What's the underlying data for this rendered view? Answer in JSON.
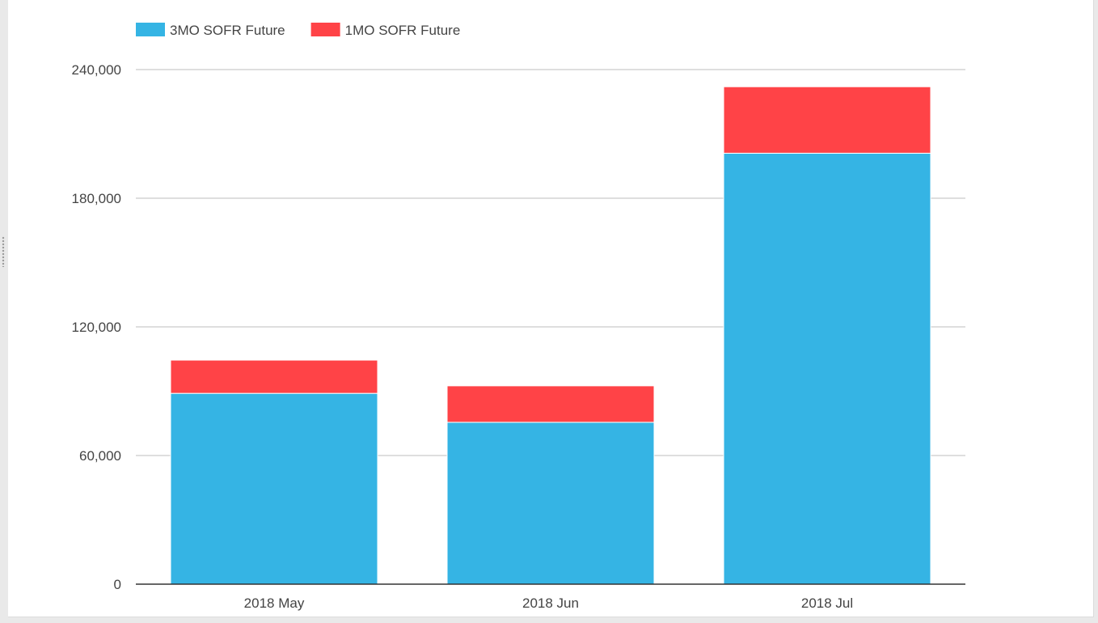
{
  "chart_data": {
    "type": "bar",
    "stacked": true,
    "title": "",
    "xlabel": "",
    "ylabel": "",
    "categories": [
      "2018 May",
      "2018 Jun",
      "2018 Jul"
    ],
    "series": [
      {
        "name": "3MO SOFR Future",
        "color": "#35b4e4",
        "values": [
          89000,
          75500,
          201000
        ]
      },
      {
        "name": "1MO SOFR Future",
        "color": "#ff4347",
        "values": [
          15500,
          17000,
          31000
        ]
      }
    ],
    "ylim": [
      0,
      240000
    ],
    "yticks": [
      0,
      60000,
      120000,
      180000,
      240000
    ],
    "ytick_labels": [
      "0",
      "60,000",
      "120,000",
      "180,000",
      "240,000"
    ],
    "grid": true,
    "legend_position": "top-left"
  },
  "colors": {
    "grid": "#c9c9c9",
    "axis": "#333333",
    "text": "#444444",
    "background": "#ffffff"
  },
  "icons": {
    "resize_handle": "drag-handle-icon"
  }
}
